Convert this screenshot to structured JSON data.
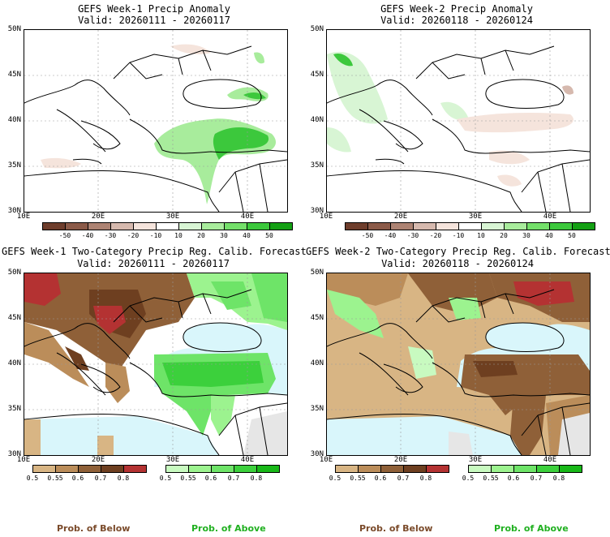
{
  "panels": [
    {
      "title": "GEFS Week-1 Precip Anomaly",
      "valid": "Valid: 20260111 - 20260117",
      "lat_labels": [
        "50N",
        "45N",
        "40N",
        "35N",
        "30N"
      ],
      "lon_labels": [
        "10E",
        "20E",
        "30E",
        "40E"
      ],
      "colorbar": {
        "colors": [
          "#6e3d2c",
          "#8b5a48",
          "#ad8373",
          "#d6b9ae",
          "#f5e4dc",
          "#ffffff",
          "#d8f5d4",
          "#a8ec9c",
          "#74e06a",
          "#3cc83c",
          "#14a014"
        ],
        "ticks": [
          "-50",
          "-40",
          "-30",
          "-20",
          "-10",
          "10",
          "20",
          "30",
          "40",
          "50"
        ]
      }
    },
    {
      "title": "GEFS Week-2 Precip Anomaly",
      "valid": "Valid: 20260118 - 20260124",
      "lat_labels": [
        "50N",
        "45N",
        "40N",
        "35N",
        "30N"
      ],
      "lon_labels": [
        "10E",
        "20E",
        "30E",
        "40E"
      ],
      "colorbar": {
        "colors": [
          "#6e3d2c",
          "#8b5a48",
          "#ad8373",
          "#d6b9ae",
          "#f5e4dc",
          "#ffffff",
          "#d8f5d4",
          "#a8ec9c",
          "#74e06a",
          "#3cc83c",
          "#14a014"
        ],
        "ticks": [
          "-50",
          "-40",
          "-30",
          "-20",
          "-10",
          "10",
          "20",
          "30",
          "40",
          "50"
        ]
      }
    },
    {
      "title": "GEFS Week-1 Two-Category Precip Reg. Calib. Forecast",
      "valid": "Valid: 20260111 - 20260117",
      "lat_labels": [
        "50N",
        "45N",
        "40N",
        "35N",
        "30N"
      ],
      "lon_labels": [
        "10E",
        "20E",
        "30E",
        "40E"
      ],
      "below_bar": {
        "colors": [
          "#d8b584",
          "#bb8d5a",
          "#8f6038",
          "#6e3f20",
          "#b43232"
        ],
        "ticks": [
          "0.5",
          "0.55",
          "0.6",
          "0.7",
          "0.8"
        ]
      },
      "above_bar": {
        "colors": [
          "#c8fac0",
          "#9cf38f",
          "#6ee468",
          "#3cd03c",
          "#18b818"
        ],
        "ticks": [
          "0.5",
          "0.55",
          "0.6",
          "0.7",
          "0.8"
        ]
      },
      "prob_below": "Prob. of Below",
      "prob_above": "Prob. of Above"
    },
    {
      "title": "GEFS Week-2 Two-Category Precip Reg. Calib. Forecast",
      "valid": "Valid: 20260118 - 20260124",
      "lat_labels": [
        "50N",
        "45N",
        "40N",
        "35N",
        "30N"
      ],
      "lon_labels": [
        "10E",
        "20E",
        "30E",
        "40E"
      ],
      "below_bar": {
        "colors": [
          "#d8b584",
          "#bb8d5a",
          "#8f6038",
          "#6e3f20",
          "#b43232"
        ],
        "ticks": [
          "0.5",
          "0.55",
          "0.6",
          "0.7",
          "0.8"
        ]
      },
      "above_bar": {
        "colors": [
          "#c8fac0",
          "#9cf38f",
          "#6ee468",
          "#3cd03c",
          "#18b818"
        ],
        "ticks": [
          "0.5",
          "0.55",
          "0.6",
          "0.7",
          "0.8"
        ]
      },
      "prob_below": "Prob. of Below",
      "prob_above": "Prob. of Above"
    }
  ],
  "colors": {
    "sea": "#d9f6fb",
    "grid": "#999999",
    "no_data": "#e6e6e6",
    "below_text": "#7a4a2a",
    "above_text": "#20b020"
  }
}
